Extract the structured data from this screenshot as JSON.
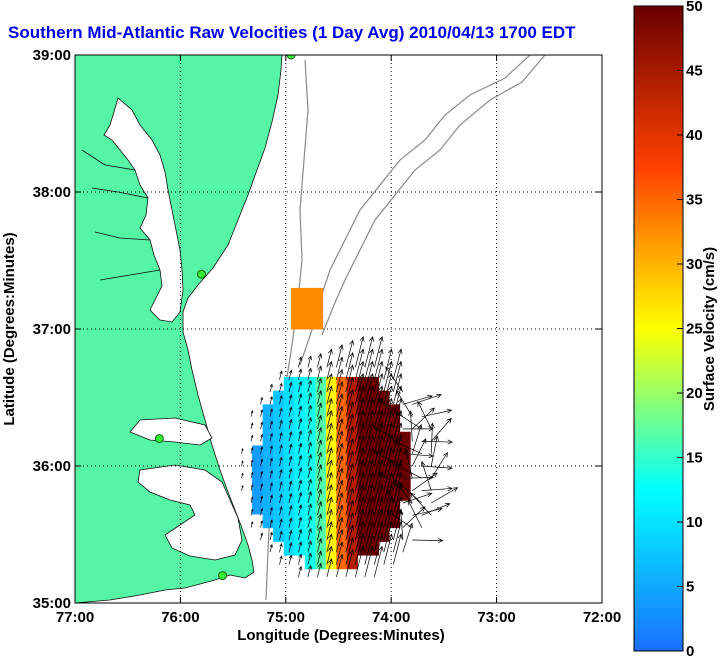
{
  "chart_data": {
    "type": "heatmap",
    "title": "Southern Mid-Atlantic Raw Velocities (1 Day Avg) 2010/04/13 1700 EDT",
    "xlabel": "Longitude (Degrees:Minutes)",
    "ylabel": "Latitude (Degrees:Minutes)",
    "colorbar_label": "Surface Velocity (cm/s)",
    "xlim": [
      -77,
      -72
    ],
    "ylim": [
      35,
      39
    ],
    "color_range": [
      0,
      50
    ],
    "x_ticks": [
      {
        "value": -77,
        "label": "77:00"
      },
      {
        "value": -76,
        "label": "76:00"
      },
      {
        "value": -75,
        "label": "75:00"
      },
      {
        "value": -74,
        "label": "74:00"
      },
      {
        "value": -73,
        "label": "73:00"
      },
      {
        "value": -72,
        "label": "72:00"
      }
    ],
    "y_ticks": [
      {
        "value": 35,
        "label": "35:00"
      },
      {
        "value": 36,
        "label": "36:00"
      },
      {
        "value": 37,
        "label": "37:00"
      },
      {
        "value": 38,
        "label": "38:00"
      },
      {
        "value": 39,
        "label": "39:00"
      }
    ],
    "colorbar_ticks": [
      {
        "value": 0,
        "label": "0"
      },
      {
        "value": 5,
        "label": "5"
      },
      {
        "value": 10,
        "label": "10"
      },
      {
        "value": 15,
        "label": "15"
      },
      {
        "value": 20,
        "label": "20"
      },
      {
        "value": 25,
        "label": "25"
      },
      {
        "value": 30,
        "label": "30"
      },
      {
        "value": 35,
        "label": "35"
      },
      {
        "value": 40,
        "label": "40"
      },
      {
        "value": 45,
        "label": "45"
      },
      {
        "value": 50,
        "label": "50"
      }
    ],
    "grid": true,
    "land_color": "#55f5a5",
    "colormap": [
      "#1a6fff",
      "#00ffff",
      "#ffff00",
      "#ff4000",
      "#6b0000"
    ],
    "radar_sites": [
      {
        "lon": -74.95,
        "lat": 39.0
      },
      {
        "lon": -75.8,
        "lat": 37.4
      },
      {
        "lon": -76.2,
        "lat": 36.2
      },
      {
        "lon": -75.6,
        "lat": 35.2
      }
    ],
    "velocity_field": {
      "grid_spacing_deg": 0.1,
      "western_edge_speed": 2,
      "eastern_speed": 50,
      "outer_region_speed": 48,
      "dominant_direction": "north-northeast"
    }
  }
}
